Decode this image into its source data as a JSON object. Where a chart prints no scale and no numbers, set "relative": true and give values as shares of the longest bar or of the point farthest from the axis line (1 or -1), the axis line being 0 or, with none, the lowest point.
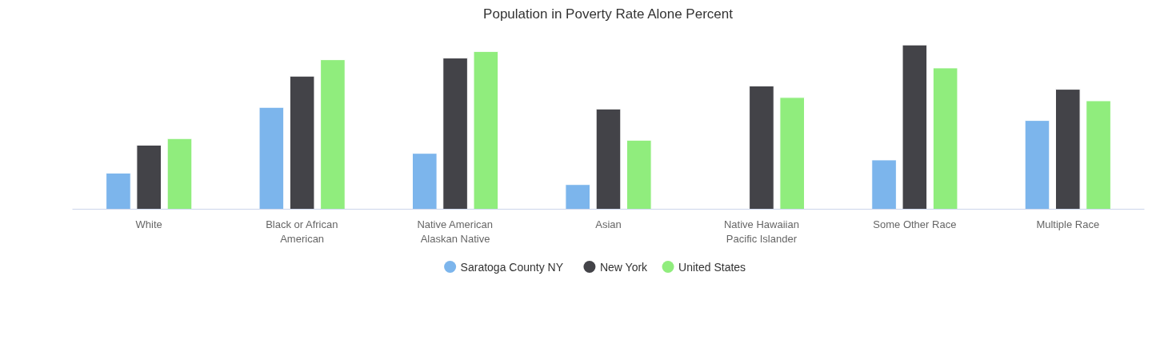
{
  "chart_data": {
    "type": "bar",
    "title": "Population in Poverty Rate Alone Percent",
    "categories": [
      "White",
      "Black or African American",
      "Native American Alaskan Native",
      "Asian",
      "Native Hawaiian Pacific Islander",
      "Some Other Race",
      "Multiple Race"
    ],
    "relative": true,
    "legend": "bottom",
    "series": [
      {
        "name": "Saratoga County NY",
        "color": "#7cb5ec",
        "values": [
          0.22,
          0.62,
          0.34,
          0.15,
          null,
          0.3,
          0.54
        ]
      },
      {
        "name": "New York",
        "color": "#434348",
        "values": [
          0.39,
          0.81,
          0.92,
          0.61,
          0.75,
          1,
          0.73
        ]
      },
      {
        "name": "United States",
        "color": "#90ed7d",
        "values": [
          0.43,
          0.91,
          0.96,
          0.42,
          0.68,
          0.86,
          0.66
        ]
      }
    ]
  }
}
